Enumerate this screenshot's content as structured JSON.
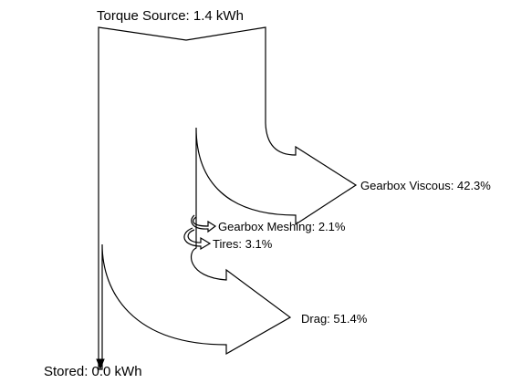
{
  "chart_data": {
    "type": "sankey",
    "title": "",
    "source": {
      "label": "Torque Source: 1.4 kWh",
      "value": 1.4,
      "unit": "kWh"
    },
    "flows": [
      {
        "label": "Gearbox Viscous: 42.3%",
        "percent": 42.3
      },
      {
        "label": "Gearbox Meshing: 2.1%",
        "percent": 2.1
      },
      {
        "label": "Tires: 3.1%",
        "percent": 3.1
      },
      {
        "label": "Drag: 51.4%",
        "percent": 51.4
      },
      {
        "label": "Stored: 0.0 kWh",
        "percent": 0.0,
        "value": 0.0,
        "unit": "kWh"
      }
    ],
    "colors": {
      "stroke": "#000000",
      "fill": "#ffffff"
    }
  }
}
